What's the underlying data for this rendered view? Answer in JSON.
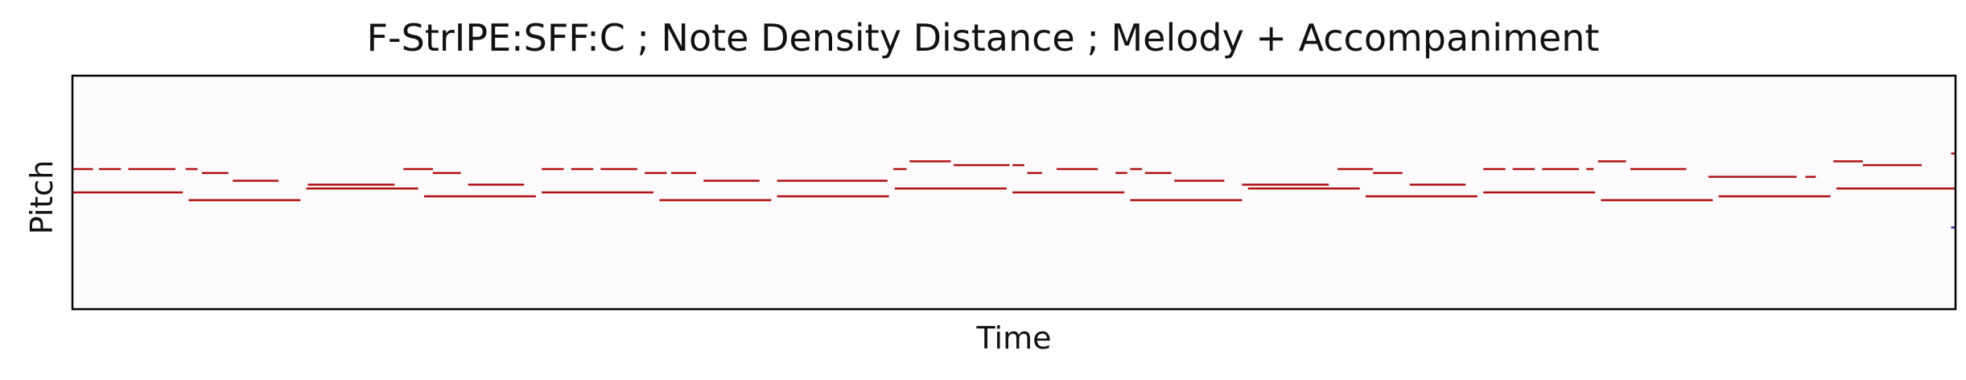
{
  "colors": {
    "background": "#fcfafc",
    "note": "#b01010",
    "edge_note": "#2a2aa0",
    "axes": "#000000"
  },
  "chart_data": {
    "type": "piano-roll",
    "title": "F-StrIPE:SFF:C ; Note Density Distance ; Melody + Accompaniment",
    "xlabel": "Time",
    "ylabel": "Pitch",
    "xlim": [
      0,
      128
    ],
    "ylim": [
      40,
      100
    ],
    "grid": false,
    "legend": "none",
    "notes": [
      {
        "start": 0.0,
        "end": 1.4,
        "pitch": 76
      },
      {
        "start": 1.8,
        "end": 3.3,
        "pitch": 76
      },
      {
        "start": 3.8,
        "end": 7.0,
        "pitch": 76
      },
      {
        "start": 7.7,
        "end": 8.5,
        "pitch": 76
      },
      {
        "start": 8.8,
        "end": 10.6,
        "pitch": 75
      },
      {
        "start": 10.9,
        "end": 14.0,
        "pitch": 73
      },
      {
        "start": 16.0,
        "end": 21.9,
        "pitch": 72
      },
      {
        "start": 22.5,
        "end": 24.5,
        "pitch": 76
      },
      {
        "start": 24.5,
        "end": 26.4,
        "pitch": 75
      },
      {
        "start": 26.9,
        "end": 30.7,
        "pitch": 72
      },
      {
        "start": 31.9,
        "end": 33.4,
        "pitch": 76
      },
      {
        "start": 33.9,
        "end": 35.4,
        "pitch": 76
      },
      {
        "start": 35.9,
        "end": 38.4,
        "pitch": 76
      },
      {
        "start": 38.9,
        "end": 40.4,
        "pitch": 75
      },
      {
        "start": 40.7,
        "end": 42.4,
        "pitch": 75
      },
      {
        "start": 42.9,
        "end": 46.7,
        "pitch": 73
      },
      {
        "start": 47.9,
        "end": 55.4,
        "pitch": 73
      },
      {
        "start": 55.8,
        "end": 56.7,
        "pitch": 76
      },
      {
        "start": 56.9,
        "end": 59.7,
        "pitch": 78
      },
      {
        "start": 59.9,
        "end": 63.7,
        "pitch": 77
      },
      {
        "start": 63.9,
        "end": 64.7,
        "pitch": 77
      },
      {
        "start": 64.9,
        "end": 65.9,
        "pitch": 75
      },
      {
        "start": 66.9,
        "end": 69.7,
        "pitch": 76
      },
      {
        "start": 70.9,
        "end": 71.7,
        "pitch": 75
      },
      {
        "start": 71.9,
        "end": 72.7,
        "pitch": 76
      },
      {
        "start": 72.9,
        "end": 74.7,
        "pitch": 75
      },
      {
        "start": 74.9,
        "end": 78.3,
        "pitch": 73
      },
      {
        "start": 79.5,
        "end": 85.4,
        "pitch": 72
      },
      {
        "start": 86.0,
        "end": 88.4,
        "pitch": 76
      },
      {
        "start": 88.4,
        "end": 90.4,
        "pitch": 75
      },
      {
        "start": 90.9,
        "end": 94.7,
        "pitch": 72
      },
      {
        "start": 95.9,
        "end": 97.4,
        "pitch": 76
      },
      {
        "start": 97.9,
        "end": 99.4,
        "pitch": 76
      },
      {
        "start": 99.9,
        "end": 102.4,
        "pitch": 76
      },
      {
        "start": 102.9,
        "end": 103.4,
        "pitch": 76
      },
      {
        "start": 103.7,
        "end": 105.6,
        "pitch": 78
      },
      {
        "start": 105.9,
        "end": 109.7,
        "pitch": 76
      },
      {
        "start": 111.2,
        "end": 117.2,
        "pitch": 74
      },
      {
        "start": 117.8,
        "end": 118.5,
        "pitch": 74
      },
      {
        "start": 119.7,
        "end": 121.7,
        "pitch": 78
      },
      {
        "start": 121.7,
        "end": 125.7,
        "pitch": 77
      },
      {
        "start": 127.7,
        "end": 128.0,
        "pitch": 80
      },
      {
        "start": 0.0,
        "end": 7.5,
        "pitch": 70
      },
      {
        "start": 7.9,
        "end": 15.5,
        "pitch": 68
      },
      {
        "start": 15.9,
        "end": 23.5,
        "pitch": 71
      },
      {
        "start": 23.9,
        "end": 31.5,
        "pitch": 69
      },
      {
        "start": 31.9,
        "end": 39.5,
        "pitch": 70
      },
      {
        "start": 39.9,
        "end": 47.5,
        "pitch": 68
      },
      {
        "start": 47.9,
        "end": 55.5,
        "pitch": 69
      },
      {
        "start": 55.9,
        "end": 63.5,
        "pitch": 71
      },
      {
        "start": 63.9,
        "end": 71.5,
        "pitch": 70
      },
      {
        "start": 71.9,
        "end": 79.5,
        "pitch": 68
      },
      {
        "start": 79.9,
        "end": 87.5,
        "pitch": 71
      },
      {
        "start": 87.9,
        "end": 95.5,
        "pitch": 69
      },
      {
        "start": 95.9,
        "end": 103.5,
        "pitch": 70
      },
      {
        "start": 103.9,
        "end": 111.5,
        "pitch": 68
      },
      {
        "start": 111.9,
        "end": 119.5,
        "pitch": 69
      },
      {
        "start": 119.9,
        "end": 127.7,
        "pitch": 71
      },
      {
        "start": 127.7,
        "end": 128.0,
        "pitch": 71
      },
      {
        "start": 127.7,
        "end": 128.0,
        "pitch": 61,
        "edge": true
      }
    ]
  }
}
